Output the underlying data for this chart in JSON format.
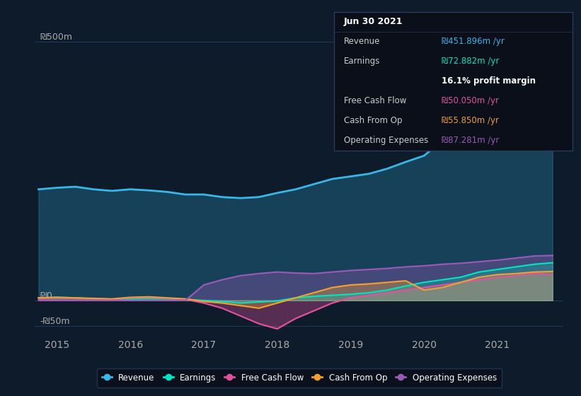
{
  "background_color": "#0d1b2a",
  "plot_bg_color": "#0d1b2a",
  "title": "Jun 30 2021",
  "y_label_500": "₪500m",
  "y_label_0": "₪0",
  "y_label_neg50": "-₪50m",
  "x_ticks": [
    2015,
    2016,
    2017,
    2018,
    2019,
    2020,
    2021
  ],
  "ylim": [
    -70,
    520
  ],
  "xlim": [
    2014.7,
    2021.9
  ],
  "revenue_color": "#38b6e8",
  "earnings_color": "#00e5c0",
  "fcf_color": "#e052a0",
  "cashfromop_color": "#f0a030",
  "opex_color": "#9b59b6",
  "grid_color": "#1e3a5f",
  "tooltip_bg": "#0a0f1a",
  "tooltip_border": "#2a3a5a",
  "revenue": {
    "x": [
      2014.75,
      2015.0,
      2015.25,
      2015.5,
      2015.75,
      2016.0,
      2016.25,
      2016.5,
      2016.75,
      2017.0,
      2017.25,
      2017.5,
      2017.75,
      2018.0,
      2018.25,
      2018.5,
      2018.75,
      2019.0,
      2019.25,
      2019.5,
      2019.75,
      2020.0,
      2020.25,
      2020.5,
      2020.75,
      2021.0,
      2021.25,
      2021.5,
      2021.75
    ],
    "y": [
      215,
      218,
      220,
      215,
      212,
      215,
      213,
      210,
      205,
      205,
      200,
      198,
      200,
      208,
      215,
      225,
      235,
      240,
      245,
      255,
      268,
      280,
      310,
      350,
      390,
      420,
      440,
      455,
      452
    ]
  },
  "earnings": {
    "x": [
      2014.75,
      2015.0,
      2015.25,
      2015.5,
      2015.75,
      2016.0,
      2016.25,
      2016.5,
      2016.75,
      2017.0,
      2017.25,
      2017.5,
      2017.75,
      2018.0,
      2018.25,
      2018.5,
      2018.75,
      2019.0,
      2019.25,
      2019.5,
      2019.75,
      2020.0,
      2020.25,
      2020.5,
      2020.75,
      2021.0,
      2021.25,
      2021.5,
      2021.75
    ],
    "y": [
      5,
      6,
      5,
      3,
      2,
      3,
      4,
      3,
      2,
      0,
      -2,
      -5,
      -3,
      -1,
      5,
      8,
      10,
      12,
      15,
      20,
      28,
      35,
      40,
      45,
      55,
      60,
      65,
      70,
      73
    ]
  },
  "fcf": {
    "x": [
      2014.75,
      2015.0,
      2015.25,
      2015.5,
      2015.75,
      2016.0,
      2016.25,
      2016.5,
      2016.75,
      2017.0,
      2017.25,
      2017.5,
      2017.75,
      2018.0,
      2018.25,
      2018.5,
      2018.75,
      2019.0,
      2019.25,
      2019.5,
      2019.75,
      2020.0,
      2020.25,
      2020.5,
      2020.75,
      2021.0,
      2021.25,
      2021.5,
      2021.75
    ],
    "y": [
      3,
      5,
      4,
      3,
      2,
      5,
      6,
      4,
      2,
      -5,
      -15,
      -30,
      -45,
      -55,
      -35,
      -20,
      -5,
      5,
      10,
      15,
      20,
      25,
      30,
      35,
      40,
      45,
      48,
      52,
      50
    ]
  },
  "cashfromop": {
    "x": [
      2014.75,
      2015.0,
      2015.25,
      2015.5,
      2015.75,
      2016.0,
      2016.25,
      2016.5,
      2016.75,
      2017.0,
      2017.25,
      2017.5,
      2017.75,
      2018.0,
      2018.25,
      2018.5,
      2018.75,
      2019.0,
      2019.25,
      2019.5,
      2019.75,
      2020.0,
      2020.25,
      2020.5,
      2020.75,
      2021.0,
      2021.25,
      2021.5,
      2021.75
    ],
    "y": [
      5,
      6,
      5,
      4,
      3,
      6,
      7,
      5,
      3,
      -2,
      -5,
      -10,
      -15,
      -5,
      5,
      15,
      25,
      30,
      32,
      35,
      38,
      20,
      25,
      35,
      45,
      50,
      52,
      55,
      56
    ]
  },
  "opex": {
    "x": [
      2014.75,
      2015.0,
      2015.25,
      2015.5,
      2015.75,
      2016.0,
      2016.25,
      2016.5,
      2016.75,
      2017.0,
      2017.25,
      2017.5,
      2017.75,
      2018.0,
      2018.25,
      2018.5,
      2018.75,
      2019.0,
      2019.25,
      2019.5,
      2019.75,
      2020.0,
      2020.25,
      2020.5,
      2020.75,
      2021.0,
      2021.25,
      2021.5,
      2021.75
    ],
    "y": [
      0,
      0,
      0,
      0,
      0,
      0,
      0,
      0,
      0,
      30,
      40,
      48,
      52,
      55,
      53,
      52,
      55,
      58,
      60,
      62,
      65,
      67,
      70,
      72,
      75,
      78,
      82,
      86,
      87
    ]
  }
}
